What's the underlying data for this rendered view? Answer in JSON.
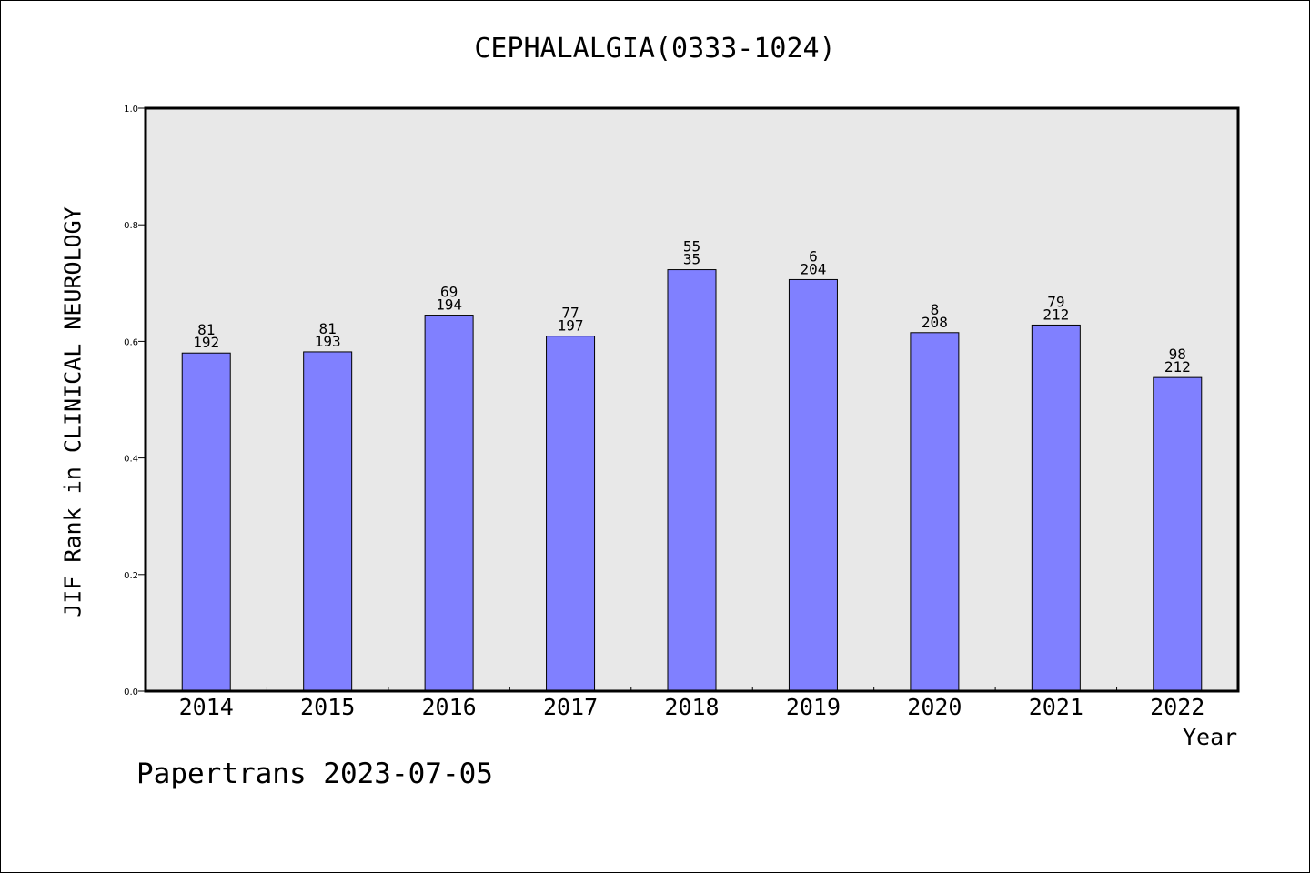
{
  "chart_data": {
    "type": "bar",
    "title": "CEPHALALGIA(0333-1024)",
    "xlabel": "Year",
    "ylabel": "JIF Rank in CLINICAL NEUROLOGY",
    "ylim": [
      0,
      1.0
    ],
    "yticks": [
      "0.0",
      "0.2",
      "0.4",
      "0.6",
      "0.8",
      "1.0"
    ],
    "categories": [
      "2014",
      "2015",
      "2016",
      "2017",
      "2018",
      "2019",
      "2020",
      "2021",
      "2022"
    ],
    "values": [
      0.58,
      0.582,
      0.645,
      0.609,
      0.723,
      0.706,
      0.615,
      0.628,
      0.538
    ],
    "rank_labels": [
      "81",
      "81",
      "69",
      "77",
      "55",
      "6",
      "8",
      "79",
      "98"
    ],
    "total_labels": [
      "192",
      "193",
      "194",
      "197",
      "35",
      "204",
      "208",
      "212",
      "212"
    ],
    "grid": false,
    "legend": "none",
    "colors": {
      "bar": "#8080ff",
      "plot_bg": "#e8e8e8",
      "axis": "#000000"
    }
  },
  "footer": "Papertrans 2023-07-05"
}
